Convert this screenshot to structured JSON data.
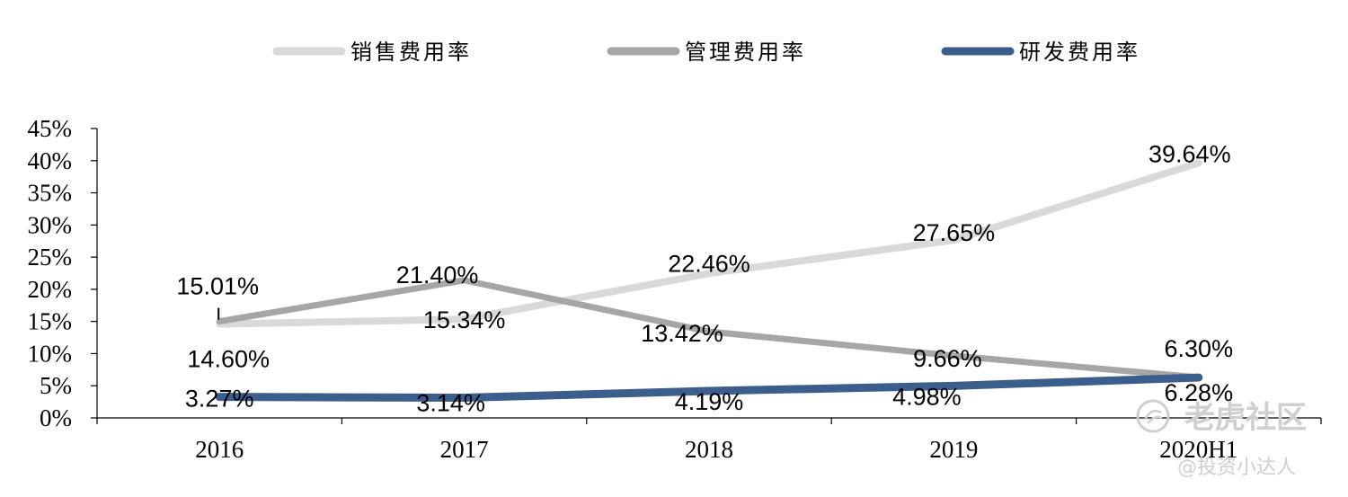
{
  "chart_data": {
    "type": "line",
    "categories": [
      "2016",
      "2017",
      "2018",
      "2019",
      "2020H1"
    ],
    "ylim": [
      0,
      45
    ],
    "y_ticks": [
      0,
      5,
      10,
      15,
      20,
      25,
      30,
      35,
      40,
      45
    ],
    "y_tick_labels": [
      "0%",
      "5%",
      "10%",
      "15%",
      "20%",
      "25%",
      "30%",
      "35%",
      "40%",
      "45%"
    ],
    "legend_position": "top",
    "grid": false,
    "series": [
      {
        "name": "销售费用率",
        "color": "#d9d9d9",
        "values": [
          14.6,
          15.34,
          22.46,
          27.65,
          39.64
        ],
        "labels": [
          "14.60%",
          "15.34%",
          "22.46%",
          "27.65%",
          "39.64%"
        ]
      },
      {
        "name": "管理费用率",
        "color": "#a6a6a6",
        "values": [
          15.01,
          21.4,
          13.42,
          9.66,
          6.3
        ],
        "labels": [
          "15.01%",
          "21.40%",
          "13.42%",
          "9.66%",
          "6.30%"
        ]
      },
      {
        "name": "研发费用率",
        "color": "#3b5e8c",
        "values": [
          3.27,
          3.14,
          4.19,
          4.98,
          6.28
        ],
        "labels": [
          "3.27%",
          "3.14%",
          "4.19%",
          "4.98%",
          "6.28%"
        ]
      }
    ]
  },
  "watermark": {
    "logo_text": "老虎社区",
    "handle_text": "@投资小达人"
  }
}
